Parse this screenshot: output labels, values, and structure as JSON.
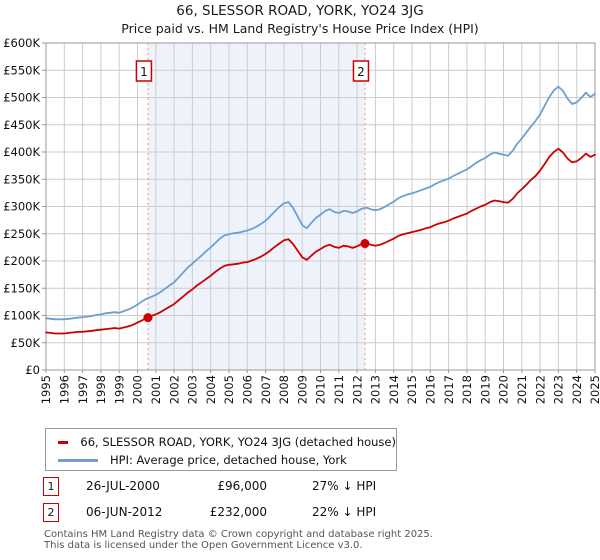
{
  "title": "66, SLESSOR ROAD, YORK, YO24 3JG",
  "subtitle": "Price paid vs. HM Land Registry's House Price Index (HPI)",
  "colors": {
    "property_line": "#cc0000",
    "hpi_line": "#6f9fd0",
    "grid": "#cccccc",
    "spine": "#999999",
    "sale_dashed_line": "#f28b8b",
    "shade": "#eef3fb",
    "flag_border": "#cc0000",
    "footer_text": "#555555"
  },
  "chart_data": {
    "type": "line",
    "title": "66, SLESSOR ROAD, YORK, YO24 3JG — Price paid vs. HPI",
    "xlabel": "",
    "ylabel": "",
    "xlim": [
      1995,
      2025
    ],
    "ylim": [
      0,
      600
    ],
    "grid": true,
    "legend_position": "bottom",
    "x_ticks": [
      "1995",
      "1996",
      "1997",
      "1998",
      "1999",
      "2000",
      "2001",
      "2002",
      "2003",
      "2004",
      "2005",
      "2006",
      "2007",
      "2008",
      "2009",
      "2010",
      "2011",
      "2012",
      "2013",
      "2014",
      "2015",
      "2016",
      "2017",
      "2018",
      "2019",
      "2020",
      "2021",
      "2022",
      "2023",
      "2024",
      "2025"
    ],
    "y_ticks": [
      "£0",
      "£50K",
      "£100K",
      "£150K",
      "£200K",
      "£250K",
      "£300K",
      "£350K",
      "£400K",
      "£450K",
      "£500K",
      "£550K",
      "£600K"
    ],
    "x_start": 1995.0,
    "x_step": 0.25,
    "units": "GBP thousands",
    "series": [
      {
        "name": "HPI: Average price, detached house, York",
        "color": "#6f9fd0",
        "width": 1.8,
        "values": [
          95,
          94,
          93,
          93,
          93,
          94,
          95,
          96,
          97,
          98,
          99,
          101,
          102,
          104,
          105,
          106,
          105,
          108,
          111,
          115,
          120,
          126,
          131,
          134,
          138,
          143,
          149,
          155,
          161,
          170,
          179,
          188,
          195,
          203,
          210,
          218,
          225,
          233,
          241,
          247,
          249,
          251,
          252,
          254,
          256,
          259,
          263,
          268,
          274,
          282,
          291,
          299,
          306,
          308,
          297,
          282,
          266,
          260,
          270,
          279,
          285,
          292,
          295,
          290,
          288,
          292,
          291,
          288,
          291,
          296,
          298,
          295,
          293,
          295,
          299,
          304,
          309,
          315,
          319,
          322,
          324,
          327,
          330,
          333,
          336,
          341,
          345,
          348,
          351,
          356,
          360,
          364,
          368,
          374,
          380,
          385,
          389,
          395,
          399,
          397,
          395,
          393,
          402,
          415,
          425,
          436,
          447,
          457,
          469,
          485,
          501,
          513,
          520,
          512,
          498,
          488,
          491,
          499,
          509,
          501,
          507
        ]
      },
      {
        "name": "66, SLESSOR ROAD, YORK, YO24 3JG (detached house)",
        "color": "#cc0000",
        "width": 1.8,
        "values": [
          69,
          68,
          67,
          67,
          67,
          68,
          69,
          70,
          70,
          71,
          72,
          73,
          74,
          75,
          76,
          77,
          76,
          78,
          80,
          83,
          87,
          91,
          96,
          99,
          102,
          106,
          111,
          116,
          121,
          128,
          135,
          142,
          148,
          155,
          161,
          167,
          173,
          180,
          186,
          191,
          193,
          194,
          195,
          197,
          198,
          201,
          204,
          208,
          213,
          219,
          226,
          232,
          238,
          240,
          231,
          219,
          207,
          202,
          210,
          217,
          222,
          227,
          230,
          226,
          224,
          228,
          227,
          224,
          227,
          231,
          232,
          230,
          228,
          230,
          233,
          237,
          241,
          246,
          249,
          251,
          253,
          255,
          257,
          260,
          262,
          266,
          269,
          271,
          274,
          278,
          281,
          284,
          287,
          292,
          296,
          300,
          303,
          308,
          311,
          310,
          308,
          307,
          314,
          324,
          332,
          340,
          349,
          356,
          366,
          378,
          391,
          400,
          406,
          399,
          388,
          381,
          383,
          389,
          397,
          391,
          395
        ]
      }
    ],
    "sale_markers": [
      {
        "label": "1",
        "x": 2000.57,
        "value": 96
      },
      {
        "label": "2",
        "x": 2012.43,
        "value": 232
      }
    ],
    "shaded_region": {
      "x0": 2000.57,
      "x1": 2012.43
    }
  },
  "legend": {
    "items": [
      {
        "label": "66, SLESSOR ROAD, YORK, YO24 3JG (detached house)",
        "color": "#cc0000",
        "thickness": 3
      },
      {
        "label": "HPI: Average price, detached house, York",
        "color": "#6f9fd0",
        "thickness": 3
      }
    ]
  },
  "annotations": [
    {
      "num": "1",
      "date": "26-JUL-2000",
      "price": "£96,000",
      "hpi_delta": "27% ↓ HPI"
    },
    {
      "num": "2",
      "date": "06-JUN-2012",
      "price": "£232,000",
      "hpi_delta": "22% ↓ HPI"
    }
  ],
  "footer": {
    "line1": "Contains HM Land Registry data © Crown copyright and database right 2025.",
    "line2": "This data is licensed under the Open Government Licence v3.0."
  }
}
